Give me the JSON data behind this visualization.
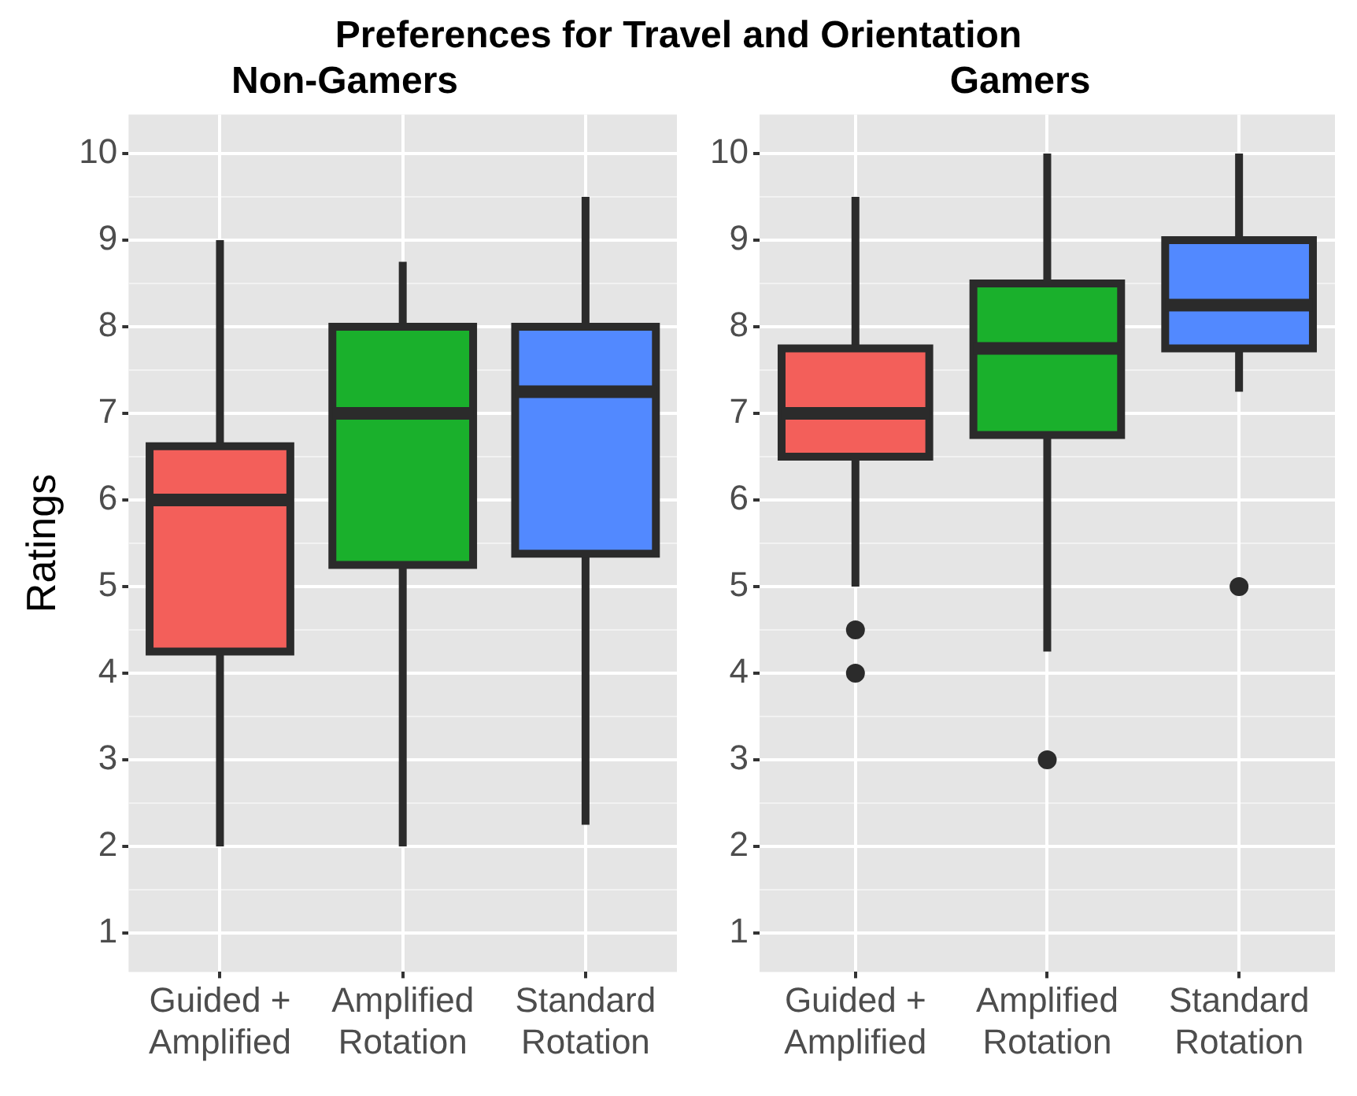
{
  "chart_data": [
    {
      "type": "box",
      "title": "Preferences for Travel and Orientation",
      "subtitle": "Non-Gamers",
      "ylabel": "Ratings",
      "categories": [
        "Guided +\nAmplified",
        "Amplified\nRotation",
        "Standard\nRotation"
      ],
      "colors": [
        "#f35f5a",
        "#1ab02c",
        "#5289ff"
      ],
      "boxes": [
        {
          "low": 2,
          "q1": 4.25,
          "median": 6,
          "q3": 6.62,
          "high": 9
        },
        {
          "low": 2,
          "q1": 5.25,
          "median": 7,
          "q3": 8,
          "high": 8.75
        },
        {
          "low": 2.25,
          "q1": 5.38,
          "median": 7.25,
          "q3": 8,
          "high": 9.5
        }
      ],
      "ylim": [
        0.55,
        10.45
      ],
      "yticks": [
        1,
        2,
        3,
        4,
        5,
        6,
        7,
        8,
        9,
        10
      ],
      "grid": true
    },
    {
      "type": "box",
      "subtitle": "Gamers",
      "categories": [
        "Guided +\nAmplified",
        "Amplified\nRotation",
        "Standard\nRotation"
      ],
      "colors": [
        "#f35f5a",
        "#1ab02c",
        "#5289ff"
      ],
      "boxes": [
        {
          "low": 5,
          "q1": 6.5,
          "median": 7,
          "q3": 7.75,
          "high": 9.5,
          "outliers": [
            4.5,
            4
          ]
        },
        {
          "low": 4.25,
          "q1": 6.75,
          "median": 7.75,
          "q3": 8.5,
          "high": 10,
          "outliers": [
            3
          ]
        },
        {
          "low": 7.25,
          "q1": 7.75,
          "median": 8.25,
          "q3": 9,
          "high": 10,
          "outliers": [
            5
          ]
        }
      ],
      "ylim": [
        0.55,
        10.45
      ],
      "yticks": [
        1,
        2,
        3,
        4,
        5,
        6,
        7,
        8,
        9,
        10
      ],
      "grid": true
    }
  ]
}
